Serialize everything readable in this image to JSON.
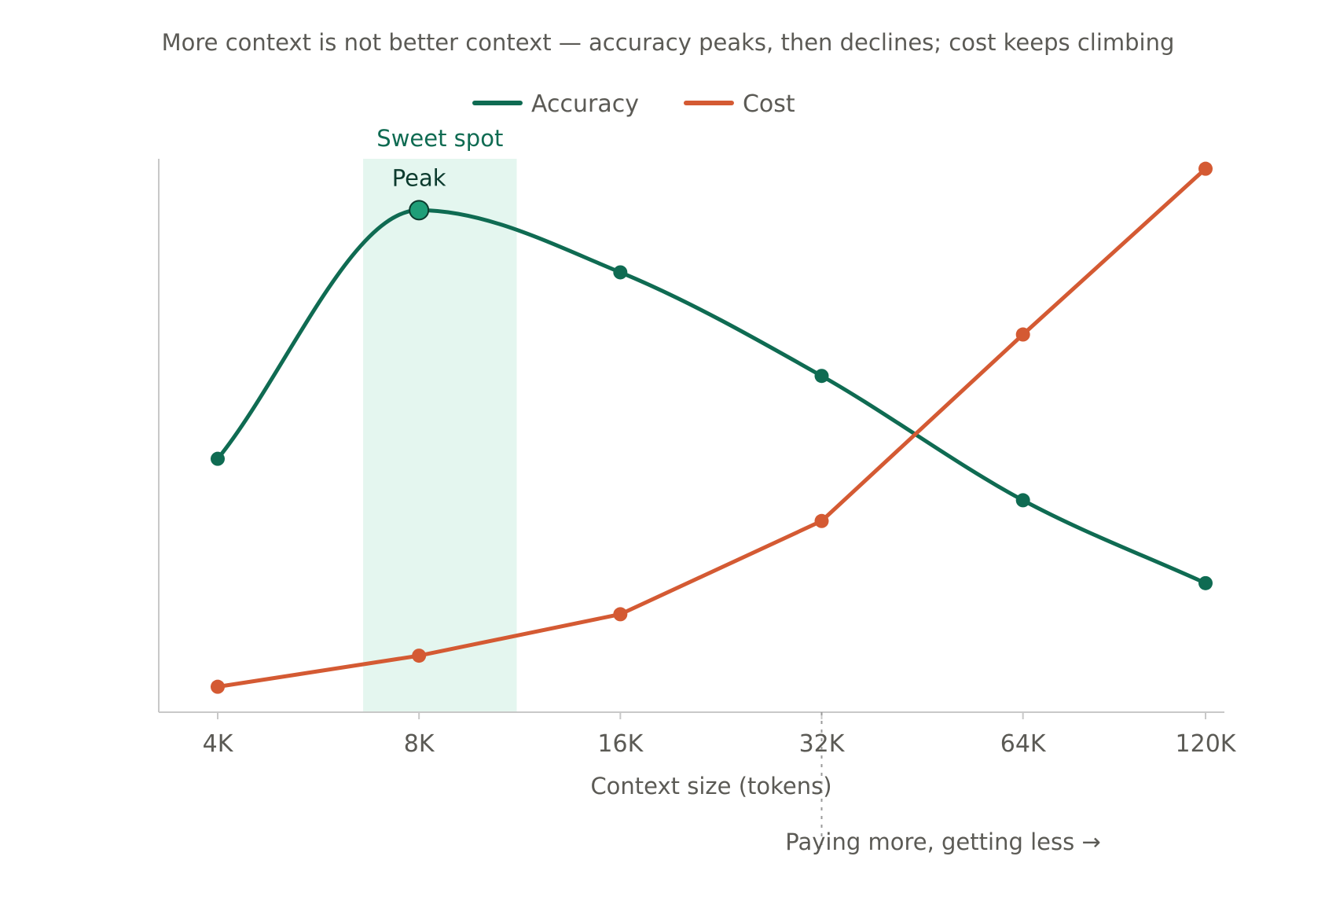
{
  "chart_data": {
    "type": "line",
    "title": "More context is not better context — accuracy peaks, then declines; cost keeps climbing",
    "xlabel": "Context size (tokens)",
    "ylabel": "",
    "x": [
      "4K",
      "8K",
      "16K",
      "32K",
      "64K",
      "120K"
    ],
    "x_values": [
      4,
      8,
      16,
      32,
      64,
      120
    ],
    "y_axis_ticks": false,
    "ylim": [
      0,
      100
    ],
    "grid": false,
    "legend": {
      "placement": "top-center"
    },
    "series": [
      {
        "name": "Accuracy",
        "color": "#0f6b52",
        "smooth": true,
        "values": [
          48,
          96,
          84,
          64,
          40,
          24
        ]
      },
      {
        "name": "Cost",
        "color": "#d45a33",
        "smooth": false,
        "values": [
          4,
          10,
          18,
          36,
          72,
          104
        ]
      }
    ],
    "annotations": {
      "band": {
        "label": "Sweet spot",
        "x_start": 6.6,
        "x_end": 11.2,
        "fill": "#e4f6ef",
        "label_color": "#0f6b52"
      },
      "peak": {
        "label": "Peak",
        "series": "Accuracy",
        "x": 8,
        "marker_color": "#1f9e78"
      },
      "divider": {
        "x": 32,
        "label": "Paying more, getting less →"
      }
    }
  }
}
